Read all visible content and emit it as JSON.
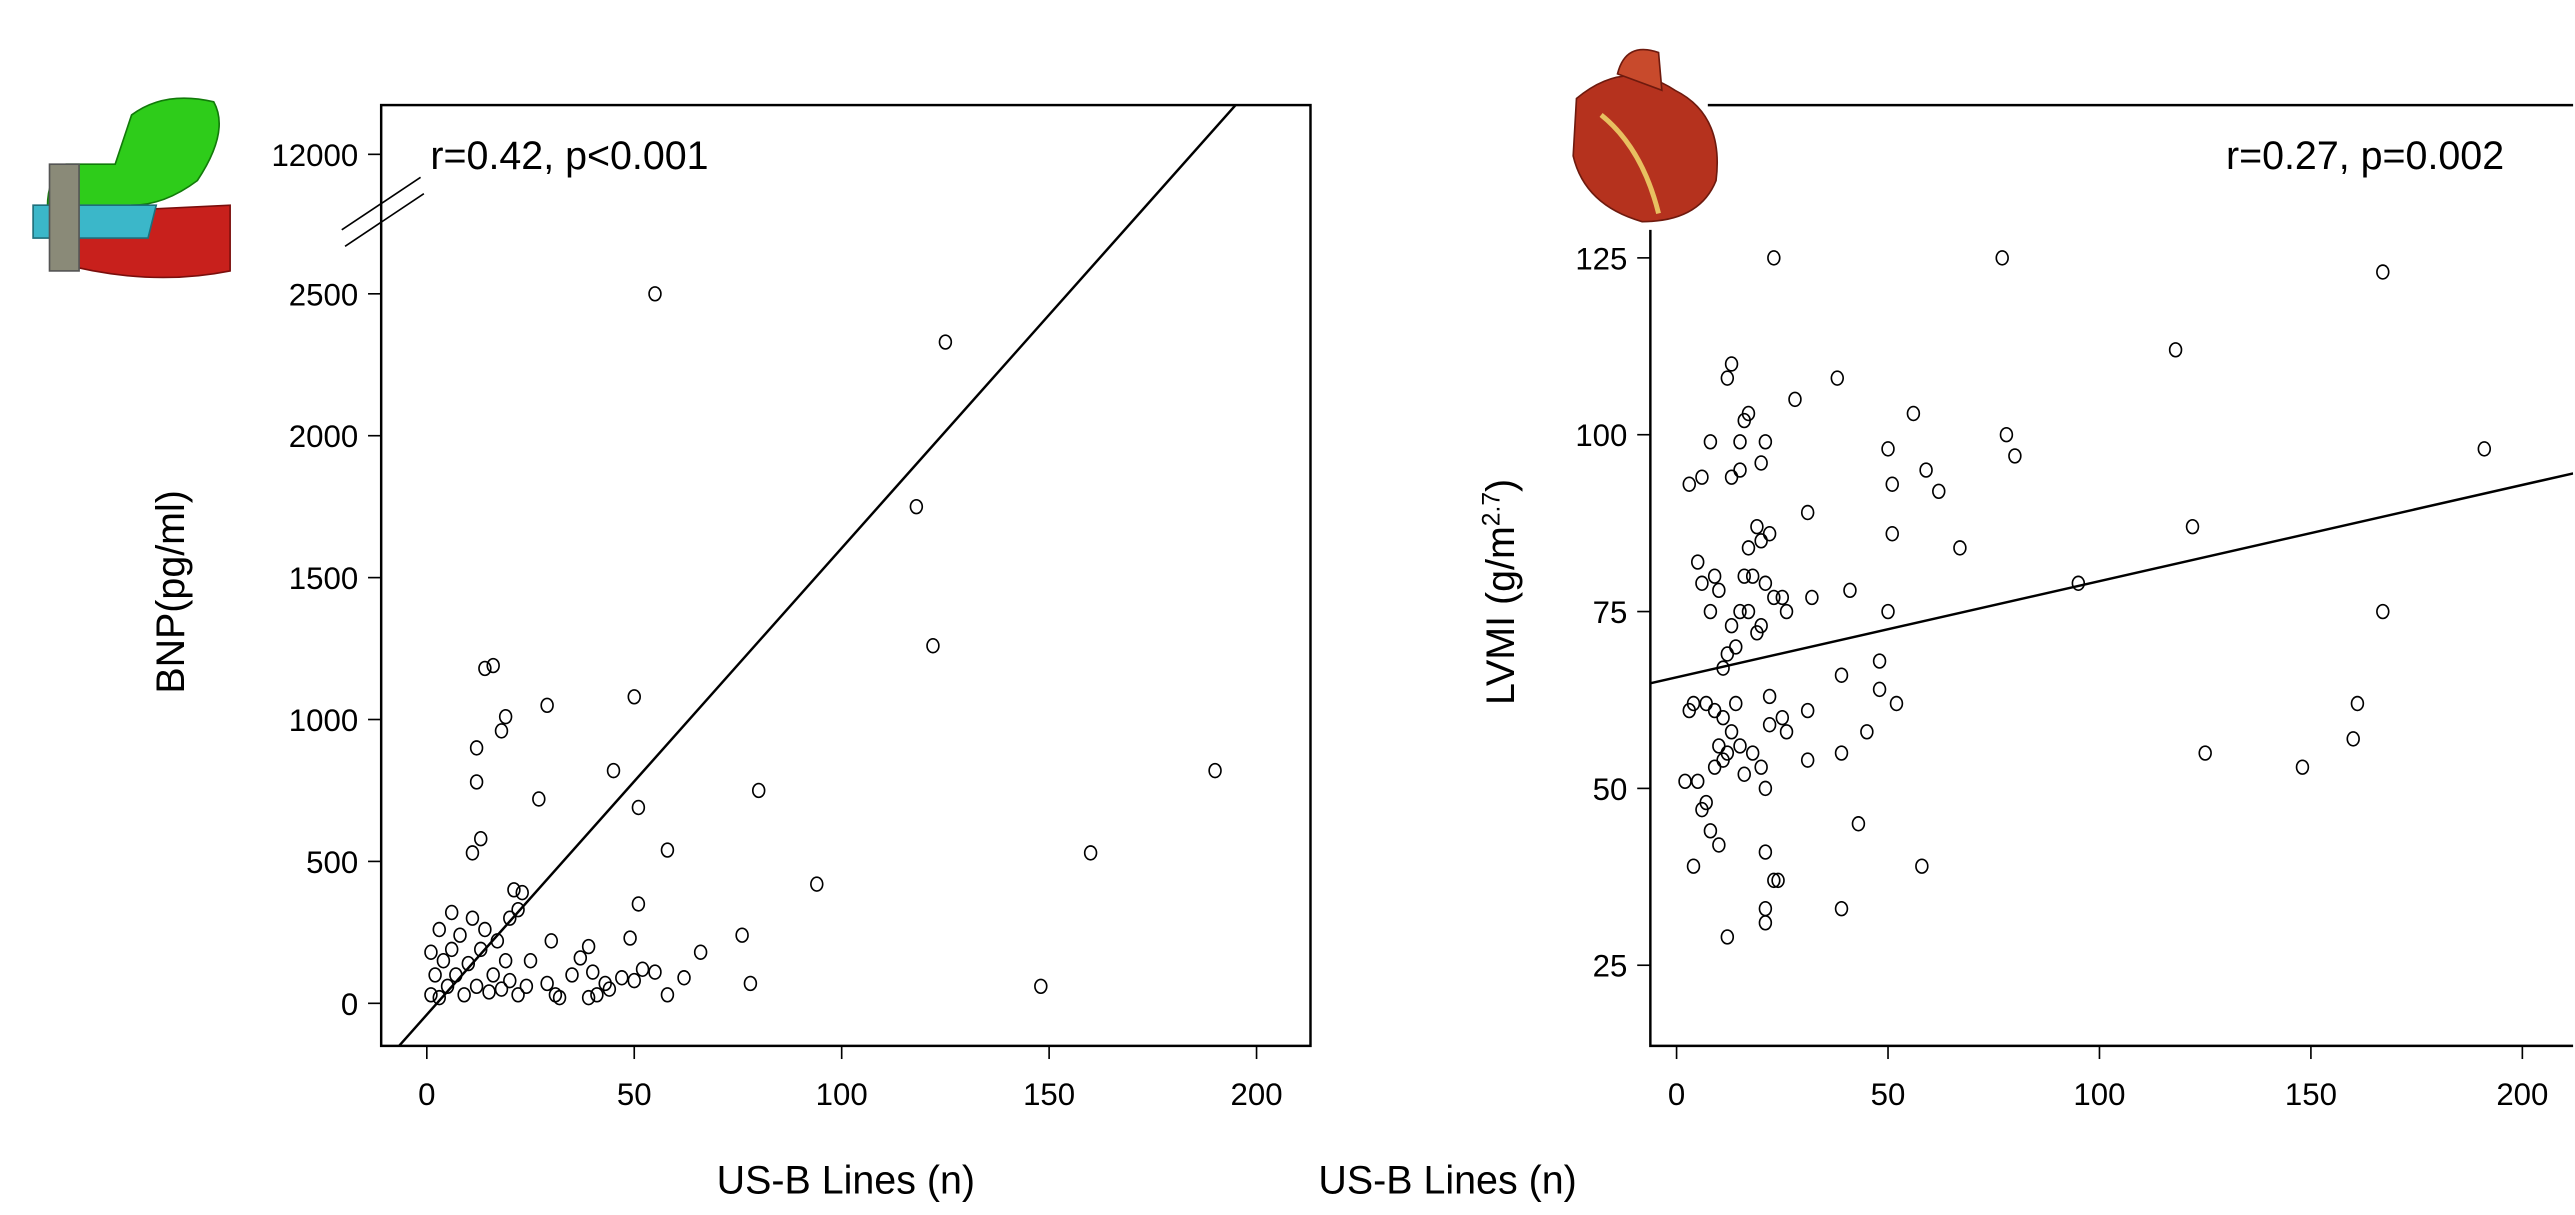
{
  "chart_data": [
    {
      "type": "scatter",
      "xlabel": "US-B Lines (n)",
      "ylabel": "BNP(pg/ml)",
      "annotation": "r=0.42, p<0.001",
      "xlim": [
        -11,
        213
      ],
      "ylim": [
        -150,
        3165
      ],
      "xticks": [
        0,
        50,
        100,
        150,
        200
      ],
      "yticks": [
        0,
        500,
        1000,
        1500,
        2000,
        2500
      ],
      "upper_tick": 12000,
      "fit": {
        "intercept": -40,
        "slope": 16.44
      },
      "x": [
        55,
        125,
        118,
        122,
        190,
        160,
        148,
        94,
        80,
        78,
        76,
        66,
        62,
        58,
        58,
        55,
        51,
        51,
        50,
        49,
        50,
        45,
        43,
        39,
        40,
        39,
        41,
        27,
        29,
        30,
        29,
        31,
        32,
        23,
        22,
        21,
        20,
        19,
        18,
        16,
        14,
        13,
        12,
        12,
        11,
        19,
        18,
        17,
        16,
        15,
        14,
        13,
        12,
        11,
        10,
        9,
        8,
        7,
        6,
        6,
        5,
        4,
        3,
        3,
        2,
        1,
        1,
        24,
        22,
        20,
        25,
        35,
        37,
        44,
        47,
        52
      ],
      "values": [
        2500,
        2330,
        1750,
        1260,
        820,
        530,
        60,
        420,
        750,
        70,
        240,
        180,
        90,
        30,
        540,
        110,
        350,
        690,
        1080,
        230,
        80,
        820,
        70,
        200,
        110,
        20,
        30,
        720,
        1050,
        220,
        70,
        30,
        20,
        390,
        330,
        400,
        300,
        1010,
        960,
        1190,
        1180,
        580,
        900,
        780,
        530,
        150,
        50,
        220,
        100,
        40,
        260,
        190,
        60,
        300,
        140,
        30,
        240,
        100,
        320,
        190,
        60,
        150,
        260,
        20,
        100,
        30,
        180,
        60,
        30,
        80,
        150,
        100,
        160,
        50,
        90,
        120
      ]
    },
    {
      "type": "scatter",
      "xlabel": "US-B Lines (n)",
      "ylabel": "LVMI (g/m",
      "ylabel_sup": "2.7",
      "ylabel_end": ")",
      "annotation": "r=0.27, p=0.002",
      "xlim": [
        -6.2,
        212
      ],
      "ylim": [
        13.6,
        146.6
      ],
      "xticks": [
        0,
        50,
        100,
        150,
        200
      ],
      "yticks": [
        25,
        50,
        75,
        100,
        125
      ],
      "fit": {
        "intercept": 65.7,
        "slope": 0.136
      },
      "x": [
        23,
        77,
        167,
        118,
        191,
        122,
        95,
        167,
        161,
        160,
        125,
        148,
        58,
        43,
        39,
        39,
        39,
        38,
        28,
        56,
        50,
        51,
        59,
        62,
        67,
        51,
        78,
        80,
        31,
        41,
        32,
        50,
        48,
        48,
        52,
        45,
        31,
        31,
        23,
        24,
        21,
        21,
        21,
        12,
        4,
        8,
        10,
        6,
        7,
        5,
        2,
        3,
        4,
        5,
        6,
        8,
        9,
        10,
        11,
        12,
        13,
        14,
        15,
        16,
        17,
        18,
        19,
        20,
        21,
        22,
        23,
        20,
        21,
        15,
        15,
        13,
        16,
        17,
        12,
        13,
        8,
        3,
        6,
        13,
        15,
        16,
        18,
        20,
        21,
        22,
        25,
        14,
        10,
        9,
        11,
        12,
        7,
        22,
        25,
        26,
        17,
        19,
        20,
        26,
        11,
        9
      ],
      "values": [
        125,
        125,
        123,
        112,
        98,
        87,
        79,
        75,
        62,
        57,
        55,
        53,
        39,
        45,
        33,
        55,
        66,
        108,
        105,
        103,
        98,
        93,
        95,
        92,
        84,
        86,
        100,
        97,
        89,
        78,
        77,
        75,
        68,
        64,
        62,
        58,
        61,
        54,
        37,
        37,
        41,
        33,
        31,
        29,
        39,
        44,
        42,
        47,
        48,
        51,
        51,
        61,
        62,
        82,
        79,
        75,
        80,
        78,
        67,
        69,
        73,
        70,
        75,
        80,
        84,
        80,
        87,
        85,
        79,
        86,
        77,
        96,
        99,
        99,
        95,
        94,
        102,
        103,
        108,
        110,
        99,
        93,
        94,
        58,
        56,
        52,
        55,
        53,
        50,
        59,
        60,
        62,
        56,
        53,
        54,
        55,
        62,
        63,
        77,
        75,
        75,
        72,
        73,
        58,
        60,
        61
      ]
    }
  ]
}
